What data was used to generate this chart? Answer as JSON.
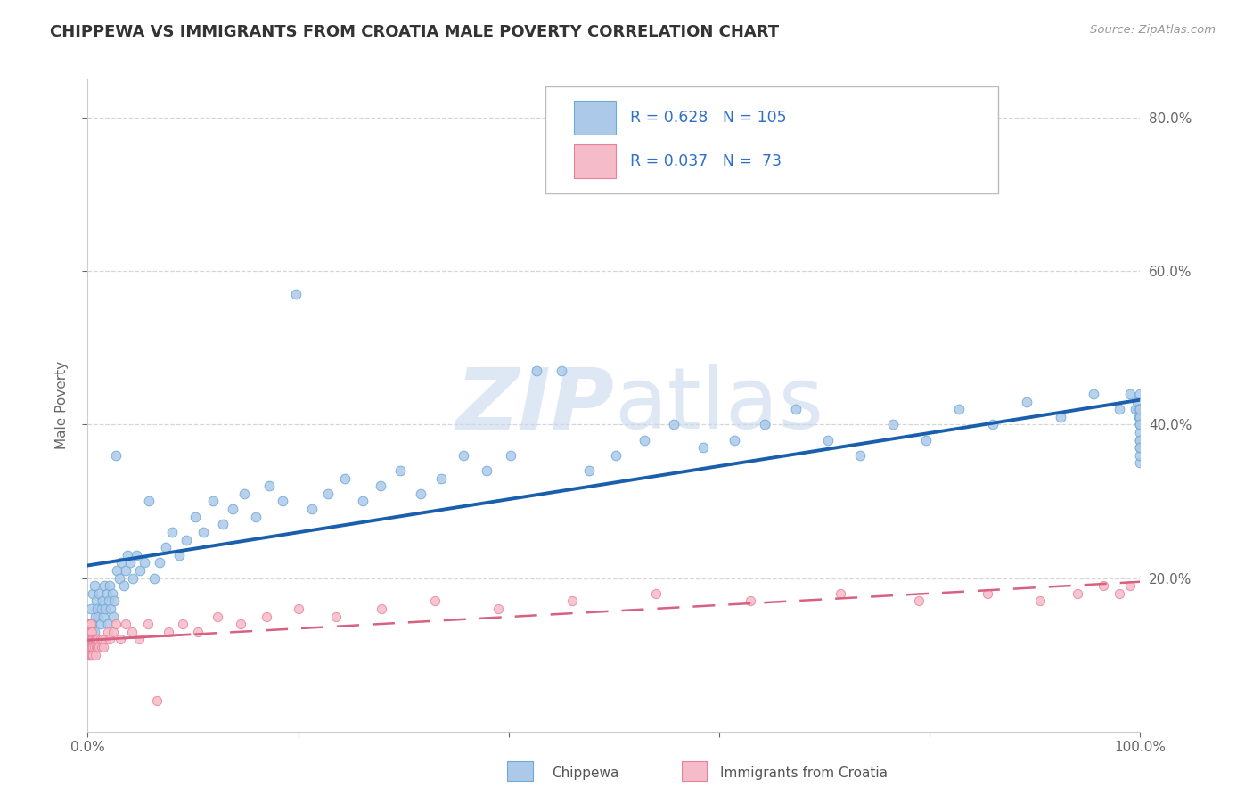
{
  "title": "CHIPPEWA VS IMMIGRANTS FROM CROATIA MALE POVERTY CORRELATION CHART",
  "source": "Source: ZipAtlas.com",
  "ylabel": "Male Poverty",
  "xlim": [
    0,
    1.0
  ],
  "ylim": [
    0,
    0.85
  ],
  "x_ticks": [
    0.0,
    0.2,
    0.4,
    0.6,
    0.8,
    1.0
  ],
  "x_tick_labels": [
    "0.0%",
    "",
    "",
    "",
    "",
    "100.0%"
  ],
  "y_ticks": [
    0.2,
    0.4,
    0.6,
    0.8
  ],
  "y_tick_labels_right": [
    "20.0%",
    "40.0%",
    "60.0%",
    "80.0%"
  ],
  "chippewa_scatter_color": "#adc9ea",
  "croatia_scatter_color": "#f5bbc8",
  "chippewa_edge_color": "#6aaad4",
  "croatia_edge_color": "#e8809a",
  "regression_blue": "#1a5fad",
  "regression_pink": "#d86080",
  "watermark_color": "#c8d8ee",
  "background_color": "#ffffff",
  "grid_color": "#cccccc",
  "legend_R1": "0.628",
  "legend_N1": "105",
  "legend_R2": "0.037",
  "legend_N2": "73",
  "chip_x": [
    0.003,
    0.004,
    0.005,
    0.006,
    0.006,
    0.007,
    0.008,
    0.009,
    0.01,
    0.011,
    0.012,
    0.013,
    0.014,
    0.015,
    0.016,
    0.017,
    0.018,
    0.019,
    0.02,
    0.021,
    0.022,
    0.023,
    0.024,
    0.025,
    0.027,
    0.028,
    0.03,
    0.032,
    0.034,
    0.036,
    0.038,
    0.04,
    0.043,
    0.046,
    0.05,
    0.054,
    0.058,
    0.063,
    0.068,
    0.074,
    0.08,
    0.087,
    0.094,
    0.102,
    0.11,
    0.119,
    0.128,
    0.138,
    0.149,
    0.16,
    0.172,
    0.185,
    0.198,
    0.213,
    0.228,
    0.244,
    0.261,
    0.278,
    0.297,
    0.316,
    0.336,
    0.357,
    0.379,
    0.402,
    0.426,
    0.45,
    0.476,
    0.502,
    0.529,
    0.557,
    0.585,
    0.614,
    0.643,
    0.673,
    0.703,
    0.734,
    0.765,
    0.796,
    0.828,
    0.86,
    0.892,
    0.924,
    0.956,
    0.98,
    0.99,
    0.995,
    0.997,
    0.998,
    0.999,
    1.0,
    1.0,
    1.0,
    1.0,
    1.0,
    1.0,
    1.0,
    1.0,
    1.0,
    1.0,
    1.0,
    1.0,
    1.0,
    1.0,
    1.0,
    1.0
  ],
  "chip_y": [
    0.16,
    0.14,
    0.18,
    0.13,
    0.19,
    0.15,
    0.17,
    0.16,
    0.15,
    0.18,
    0.14,
    0.16,
    0.17,
    0.15,
    0.19,
    0.16,
    0.18,
    0.14,
    0.17,
    0.19,
    0.16,
    0.18,
    0.15,
    0.17,
    0.36,
    0.21,
    0.2,
    0.22,
    0.19,
    0.21,
    0.23,
    0.22,
    0.2,
    0.23,
    0.21,
    0.22,
    0.3,
    0.2,
    0.22,
    0.24,
    0.26,
    0.23,
    0.25,
    0.28,
    0.26,
    0.3,
    0.27,
    0.29,
    0.31,
    0.28,
    0.32,
    0.3,
    0.57,
    0.29,
    0.31,
    0.33,
    0.3,
    0.32,
    0.34,
    0.31,
    0.33,
    0.36,
    0.34,
    0.36,
    0.47,
    0.47,
    0.34,
    0.36,
    0.38,
    0.4,
    0.37,
    0.38,
    0.4,
    0.42,
    0.38,
    0.36,
    0.4,
    0.38,
    0.42,
    0.4,
    0.43,
    0.41,
    0.44,
    0.42,
    0.44,
    0.42,
    0.43,
    0.42,
    0.41,
    0.44,
    0.42,
    0.35,
    0.4,
    0.37,
    0.41,
    0.38,
    0.42,
    0.4,
    0.39,
    0.41,
    0.38,
    0.36,
    0.4,
    0.37,
    0.42
  ],
  "cro_x": [
    0.001,
    0.001,
    0.001,
    0.001,
    0.001,
    0.001,
    0.001,
    0.001,
    0.002,
    0.002,
    0.002,
    0.002,
    0.002,
    0.002,
    0.002,
    0.003,
    0.003,
    0.003,
    0.003,
    0.003,
    0.004,
    0.004,
    0.004,
    0.004,
    0.005,
    0.005,
    0.005,
    0.006,
    0.006,
    0.007,
    0.007,
    0.008,
    0.008,
    0.009,
    0.01,
    0.011,
    0.012,
    0.013,
    0.014,
    0.015,
    0.017,
    0.019,
    0.021,
    0.024,
    0.027,
    0.031,
    0.036,
    0.042,
    0.049,
    0.057,
    0.066,
    0.077,
    0.09,
    0.105,
    0.123,
    0.145,
    0.17,
    0.2,
    0.236,
    0.279,
    0.33,
    0.39,
    0.46,
    0.54,
    0.63,
    0.715,
    0.79,
    0.855,
    0.905,
    0.94,
    0.965,
    0.98,
    0.99
  ],
  "cro_y": [
    0.12,
    0.11,
    0.13,
    0.1,
    0.14,
    0.12,
    0.1,
    0.11,
    0.13,
    0.11,
    0.12,
    0.1,
    0.14,
    0.12,
    0.11,
    0.13,
    0.1,
    0.12,
    0.11,
    0.14,
    0.12,
    0.11,
    0.13,
    0.1,
    0.12,
    0.11,
    0.1,
    0.12,
    0.11,
    0.12,
    0.1,
    0.11,
    0.12,
    0.11,
    0.12,
    0.11,
    0.12,
    0.11,
    0.12,
    0.11,
    0.12,
    0.13,
    0.12,
    0.13,
    0.14,
    0.12,
    0.14,
    0.13,
    0.12,
    0.14,
    0.04,
    0.13,
    0.14,
    0.13,
    0.15,
    0.14,
    0.15,
    0.16,
    0.15,
    0.16,
    0.17,
    0.16,
    0.17,
    0.18,
    0.17,
    0.18,
    0.17,
    0.18,
    0.17,
    0.18,
    0.19,
    0.18,
    0.19
  ]
}
